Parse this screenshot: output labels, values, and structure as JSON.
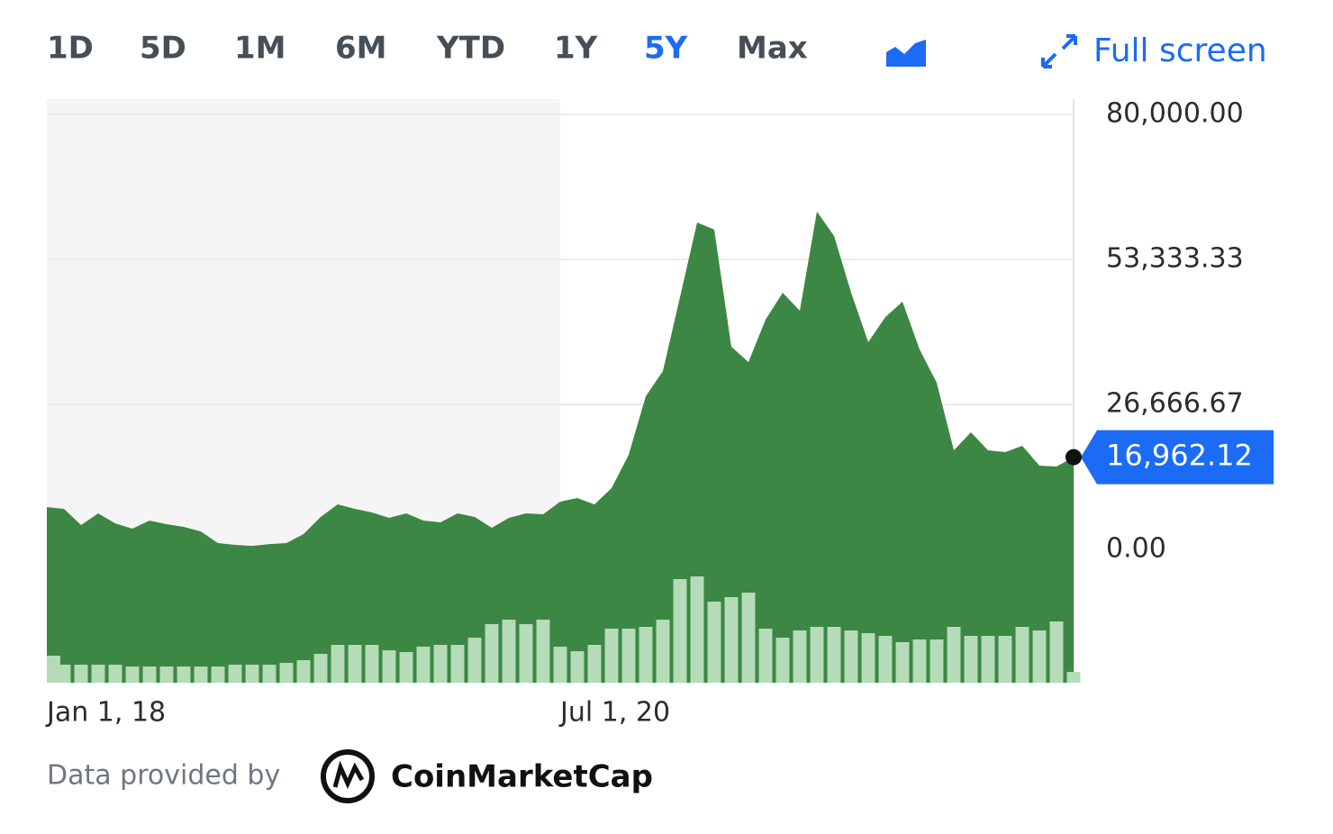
{
  "toolbar": {
    "ranges": [
      "1D",
      "5D",
      "1M",
      "6M",
      "YTD",
      "1Y",
      "5Y",
      "Max"
    ],
    "active_range": "5Y",
    "full_screen": "Full screen"
  },
  "chart_data": {
    "type": "area",
    "x": [
      0,
      1,
      2,
      3,
      4,
      5,
      6,
      7,
      8,
      9,
      10,
      11,
      12,
      13,
      14,
      15,
      16,
      17,
      18,
      19,
      20,
      21,
      22,
      23,
      24,
      25,
      26,
      27,
      28,
      29,
      30,
      31,
      32,
      33,
      34,
      35,
      36,
      37,
      38,
      39,
      40,
      41,
      42,
      43,
      44,
      45,
      46,
      47,
      48,
      49,
      50,
      51,
      52,
      53,
      54,
      55,
      56,
      57,
      58,
      59,
      60
    ],
    "xlim": [
      0,
      60
    ],
    "xticks": [
      {
        "value": 0,
        "label": "Jan 1, 18"
      },
      {
        "value": 30,
        "label": "Jul 1, 20"
      }
    ],
    "ylim": [
      -24500,
      82800
    ],
    "yticks": [
      {
        "value": 80000,
        "label": "80,000.00"
      },
      {
        "value": 53333.33,
        "label": "53,333.33"
      },
      {
        "value": 26666.67,
        "label": "26,666.67"
      },
      {
        "value": 0,
        "label": "0.00"
      }
    ],
    "grid": true,
    "series": [
      {
        "color": "#3b8743",
        "values": [
          7780,
          7450,
          4470,
          6630,
          4800,
          3810,
          5300,
          4640,
          4140,
          3310,
          1160,
          830,
          660,
          990,
          1160,
          2820,
          5960,
          8280,
          7450,
          6790,
          5800,
          6630,
          5300,
          4970,
          6630,
          5960,
          3980,
          5800,
          6630,
          6460,
          8780,
          9440,
          8280,
          11260,
          17390,
          28160,
          32790,
          46380,
          60120,
          58800,
          37270,
          34450,
          42240,
          47200,
          43890,
          62110,
          57640,
          47200,
          38100,
          42730,
          45550,
          36770,
          30640,
          18220,
          21530,
          18220,
          17890,
          19050,
          15410,
          15240,
          16962.12
        ]
      }
    ],
    "volume": {
      "color": "#b5dbb8",
      "values": [
        30,
        20,
        20,
        20,
        20,
        18,
        18,
        18,
        18,
        18,
        18,
        20,
        20,
        20,
        22,
        25,
        32,
        42,
        42,
        42,
        36,
        34,
        40,
        42,
        42,
        50,
        65,
        70,
        65,
        70,
        40,
        35,
        42,
        60,
        60,
        62,
        70,
        115,
        118,
        90,
        95,
        100,
        60,
        50,
        58,
        62,
        62,
        58,
        55,
        52,
        45,
        48,
        48,
        62,
        52,
        52,
        52,
        62,
        58,
        68,
        12
      ]
    },
    "current_label": "16,962.12"
  },
  "footer": {
    "text": "Data provided by",
    "brand": "CoinMarketCap"
  }
}
